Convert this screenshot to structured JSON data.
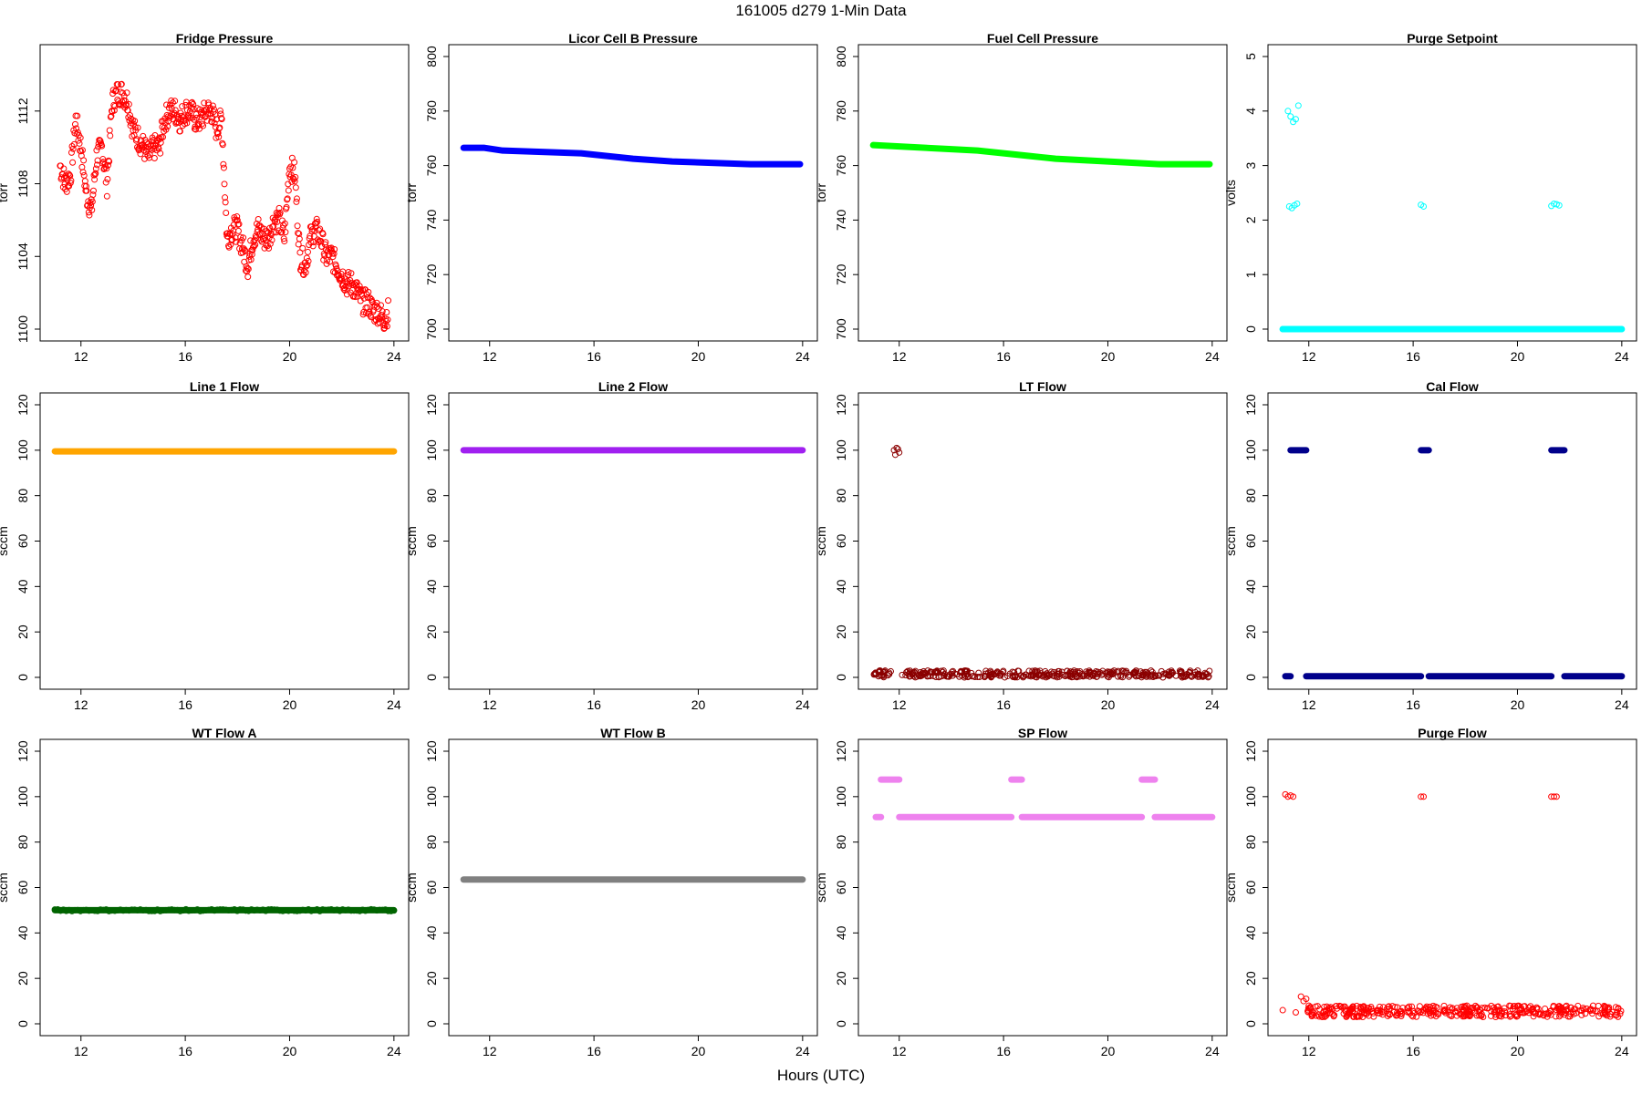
{
  "figure": {
    "title": "161005   d279   1-Min Data",
    "xlabel": "Hours (UTC)"
  },
  "chart_data": [
    {
      "type": "scatter",
      "title": "Fridge Pressure",
      "ylabel": "torr",
      "color": "#ff0000",
      "marker": "open-circle",
      "xlim": [
        11,
        24
      ],
      "ylim": [
        1100,
        1115
      ],
      "xticks": [
        12,
        16,
        20,
        24
      ],
      "yticks": [
        1100,
        1104,
        1108,
        1112
      ],
      "x": [
        11.2,
        11.4,
        11.6,
        11.8,
        12.0,
        12.2,
        12.4,
        12.6,
        12.8,
        13.0,
        13.2,
        13.4,
        13.6,
        13.8,
        14.0,
        14.2,
        14.4,
        14.6,
        14.8,
        15.0,
        15.2,
        15.4,
        15.6,
        15.8,
        16.0,
        16.2,
        16.4,
        16.6,
        16.8,
        17.0,
        17.2,
        17.4,
        17.6,
        17.8,
        18.0,
        18.2,
        18.4,
        18.6,
        18.8,
        19.0,
        19.2,
        19.4,
        19.6,
        19.8,
        20.0,
        20.2,
        20.4,
        20.6,
        20.8,
        21.0,
        21.2,
        21.4,
        21.6,
        21.8,
        22.0,
        22.2,
        22.4,
        22.6,
        22.8,
        23.0,
        23.2,
        23.4,
        23.6,
        23.8
      ],
      "y": [
        1109,
        1108,
        1108.5,
        1111.5,
        1110,
        1107.5,
        1106.5,
        1109.5,
        1110,
        1108,
        1112.5,
        1113,
        1113,
        1112.5,
        1111,
        1110.5,
        1110,
        1109.5,
        1110,
        1110,
        1111.5,
        1112,
        1112,
        1111.5,
        1112,
        1112,
        1111.5,
        1111.5,
        1112,
        1112,
        1111,
        1111.5,
        1105,
        1105.5,
        1105.5,
        1104.5,
        1103.5,
        1105,
        1105.5,
        1105,
        1105,
        1106,
        1106,
        1105,
        1109,
        1108.5,
        1104,
        1103.5,
        1105,
        1105.5,
        1105,
        1104,
        1104,
        1103.5,
        1103,
        1102.5,
        1102.5,
        1102,
        1101.5,
        1101.5,
        1101,
        1101,
        1100.5,
        1101
      ]
    },
    {
      "type": "scatter",
      "title": "Licor Cell B Pressure",
      "ylabel": "torr",
      "color": "#0000ff",
      "marker": "filled-dense",
      "xlim": [
        11,
        24
      ],
      "ylim": [
        700,
        800
      ],
      "xticks": [
        12,
        16,
        20,
        24
      ],
      "yticks": [
        700,
        720,
        740,
        760,
        780,
        800
      ],
      "x": [
        11.0,
        11.8,
        12.5,
        14.0,
        15.5,
        16.5,
        17.5,
        19.0,
        20.5,
        22.0,
        23.0,
        23.9
      ],
      "y": [
        766.5,
        766.5,
        765.5,
        765,
        764.5,
        763.5,
        762.5,
        761.5,
        761,
        760.5,
        760.5,
        760.5
      ]
    },
    {
      "type": "scatter",
      "title": "Fuel Cell Pressure",
      "ylabel": "torr",
      "color": "#00ff00",
      "marker": "filled-dense",
      "xlim": [
        11,
        24
      ],
      "ylim": [
        700,
        800
      ],
      "xticks": [
        12,
        16,
        20,
        24
      ],
      "yticks": [
        700,
        720,
        740,
        760,
        780,
        800
      ],
      "x": [
        11.0,
        12.0,
        13.0,
        14.0,
        15.0,
        16.0,
        17.0,
        18.0,
        19.0,
        20.0,
        21.0,
        22.0,
        23.0,
        23.9
      ],
      "y": [
        767.5,
        767,
        766.5,
        766,
        765.5,
        764.5,
        763.5,
        762.5,
        762,
        761.5,
        761,
        760.5,
        760.5,
        760.5
      ]
    },
    {
      "type": "scatter",
      "title": "Purge Setpoint",
      "ylabel": "volts",
      "color": "#00ffff",
      "marker": "open-circle",
      "xlim": [
        11,
        24
      ],
      "ylim": [
        0,
        5
      ],
      "xticks": [
        12,
        16,
        20,
        24
      ],
      "yticks": [
        0,
        1,
        2,
        3,
        4,
        5
      ],
      "x": [
        11.0,
        11.2,
        11.3,
        11.4,
        11.5,
        11.6,
        11.25,
        11.35,
        11.45,
        11.55,
        16.3,
        16.4,
        21.3,
        21.4,
        21.5,
        21.6
      ],
      "y": [
        0,
        4.0,
        3.9,
        3.8,
        3.85,
        4.1,
        2.25,
        2.22,
        2.27,
        2.3,
        2.28,
        2.25,
        2.26,
        2.3,
        2.29,
        2.27
      ],
      "baseline": {
        "value": 0,
        "x_range": [
          11,
          24
        ]
      }
    },
    {
      "type": "scatter",
      "title": "Line 1 Flow",
      "ylabel": "sccm",
      "color": "#ffa500",
      "marker": "filled-dense",
      "xlim": [
        11,
        24
      ],
      "ylim": [
        0,
        120
      ],
      "xticks": [
        12,
        16,
        20,
        24
      ],
      "yticks": [
        0,
        20,
        40,
        60,
        80,
        100,
        120
      ],
      "x": [
        11.0,
        24.0
      ],
      "y": [
        99.5,
        99.5
      ]
    },
    {
      "type": "scatter",
      "title": "Line 2 Flow",
      "ylabel": "sccm",
      "color": "#a020f0",
      "marker": "filled-dense",
      "xlim": [
        11,
        24
      ],
      "ylim": [
        0,
        120
      ],
      "xticks": [
        12,
        16,
        20,
        24
      ],
      "yticks": [
        0,
        20,
        40,
        60,
        80,
        100,
        120
      ],
      "x": [
        11.0,
        24.0
      ],
      "y": [
        100,
        100
      ]
    },
    {
      "type": "scatter",
      "title": "LT Flow",
      "ylabel": "sccm",
      "color": "#8b0000",
      "marker": "open-circle",
      "xlim": [
        11,
        24
      ],
      "ylim": [
        0,
        120
      ],
      "xticks": [
        12,
        16,
        20,
        24
      ],
      "yticks": [
        0,
        20,
        40,
        60,
        80,
        100,
        120
      ],
      "x": [
        11.8,
        11.9,
        12.0,
        11.85,
        11.95
      ],
      "y": [
        100,
        101,
        99,
        98,
        100.5
      ],
      "noise_band": {
        "y_range": [
          0,
          3
        ],
        "x_range": [
          11,
          24
        ],
        "gap": [
          11.7,
          12.1
        ]
      }
    },
    {
      "type": "scatter",
      "title": "Cal Flow",
      "ylabel": "sccm",
      "color": "#00008b",
      "marker": "filled-dense",
      "xlim": [
        11,
        24
      ],
      "ylim": [
        0,
        120
      ],
      "xticks": [
        12,
        16,
        20,
        24
      ],
      "yticks": [
        0,
        20,
        40,
        60,
        80,
        100,
        120
      ],
      "segments": [
        {
          "x": [
            11.1,
            11.3
          ],
          "y": 0.5
        },
        {
          "x": [
            11.3,
            11.9
          ],
          "y": 100
        },
        {
          "x": [
            11.9,
            16.3
          ],
          "y": 0.5
        },
        {
          "x": [
            16.3,
            16.6
          ],
          "y": 100
        },
        {
          "x": [
            16.6,
            21.3
          ],
          "y": 0.5
        },
        {
          "x": [
            21.3,
            21.8
          ],
          "y": 100
        },
        {
          "x": [
            21.8,
            24.0
          ],
          "y": 0.5
        }
      ]
    },
    {
      "type": "scatter",
      "title": "WT Flow A",
      "ylabel": "sccm",
      "color": "#006400",
      "marker": "open-circle",
      "xlim": [
        11,
        24
      ],
      "ylim": [
        0,
        120
      ],
      "xticks": [
        12,
        16,
        20,
        24
      ],
      "yticks": [
        0,
        20,
        40,
        60,
        80,
        100,
        120
      ],
      "x": [
        11.0,
        24.0
      ],
      "y": [
        50,
        50
      ]
    },
    {
      "type": "scatter",
      "title": "WT Flow B",
      "ylabel": "sccm",
      "color": "#808080",
      "marker": "filled-dense",
      "xlim": [
        11,
        24
      ],
      "ylim": [
        0,
        120
      ],
      "xticks": [
        12,
        16,
        20,
        24
      ],
      "yticks": [
        0,
        20,
        40,
        60,
        80,
        100,
        120
      ],
      "x": [
        11.0,
        24.0
      ],
      "y": [
        63.5,
        63.5
      ]
    },
    {
      "type": "scatter",
      "title": "SP Flow",
      "ylabel": "sccm",
      "color": "#ee82ee",
      "marker": "filled-dense",
      "xlim": [
        11,
        24
      ],
      "ylim": [
        0,
        120
      ],
      "xticks": [
        12,
        16,
        20,
        24
      ],
      "yticks": [
        0,
        20,
        40,
        60,
        80,
        100,
        120
      ],
      "segments": [
        {
          "x": [
            11.1,
            11.3
          ],
          "y": 91
        },
        {
          "x": [
            11.3,
            12.0
          ],
          "y": 107.5
        },
        {
          "x": [
            12.0,
            16.3
          ],
          "y": 91
        },
        {
          "x": [
            16.3,
            16.7
          ],
          "y": 107.5
        },
        {
          "x": [
            16.7,
            21.3
          ],
          "y": 91
        },
        {
          "x": [
            21.3,
            21.8
          ],
          "y": 107.5
        },
        {
          "x": [
            21.8,
            24.0
          ],
          "y": 91
        }
      ]
    },
    {
      "type": "scatter",
      "title": "Purge Flow",
      "ylabel": "sccm",
      "color": "#ff0000",
      "marker": "open-circle",
      "xlim": [
        11,
        24
      ],
      "ylim": [
        0,
        120
      ],
      "xticks": [
        12,
        16,
        20,
        24
      ],
      "yticks": [
        0,
        20,
        40,
        60,
        80,
        100,
        120
      ],
      "x": [
        11.0,
        11.1,
        11.2,
        11.3,
        11.4,
        11.5,
        16.3,
        16.4,
        21.3,
        21.4,
        21.5,
        11.7,
        11.8,
        11.9,
        12.0
      ],
      "y": [
        6,
        101,
        100,
        100.5,
        100,
        5,
        100,
        100,
        100,
        100,
        100,
        12,
        10,
        11,
        8
      ],
      "noise_band": {
        "y_range": [
          3,
          8
        ],
        "x_range": [
          11.9,
          24
        ]
      }
    }
  ]
}
